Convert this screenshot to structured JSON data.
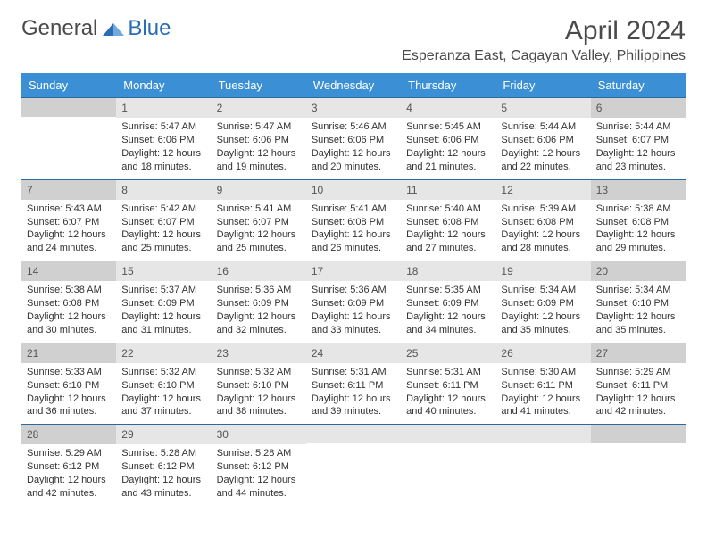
{
  "logo": {
    "general": "General",
    "blue": "Blue"
  },
  "title": "April 2024",
  "location": "Esperanza East, Cagayan Valley, Philippines",
  "accent_color": "#3b8fd4",
  "daynames": [
    "Sunday",
    "Monday",
    "Tuesday",
    "Wednesday",
    "Thursday",
    "Friday",
    "Saturday"
  ],
  "weeks": [
    [
      null,
      {
        "n": "1",
        "sr": "Sunrise: 5:47 AM",
        "ss": "Sunset: 6:06 PM",
        "dl": "Daylight: 12 hours and 18 minutes."
      },
      {
        "n": "2",
        "sr": "Sunrise: 5:47 AM",
        "ss": "Sunset: 6:06 PM",
        "dl": "Daylight: 12 hours and 19 minutes."
      },
      {
        "n": "3",
        "sr": "Sunrise: 5:46 AM",
        "ss": "Sunset: 6:06 PM",
        "dl": "Daylight: 12 hours and 20 minutes."
      },
      {
        "n": "4",
        "sr": "Sunrise: 5:45 AM",
        "ss": "Sunset: 6:06 PM",
        "dl": "Daylight: 12 hours and 21 minutes."
      },
      {
        "n": "5",
        "sr": "Sunrise: 5:44 AM",
        "ss": "Sunset: 6:06 PM",
        "dl": "Daylight: 12 hours and 22 minutes."
      },
      {
        "n": "6",
        "sr": "Sunrise: 5:44 AM",
        "ss": "Sunset: 6:07 PM",
        "dl": "Daylight: 12 hours and 23 minutes."
      }
    ],
    [
      {
        "n": "7",
        "sr": "Sunrise: 5:43 AM",
        "ss": "Sunset: 6:07 PM",
        "dl": "Daylight: 12 hours and 24 minutes."
      },
      {
        "n": "8",
        "sr": "Sunrise: 5:42 AM",
        "ss": "Sunset: 6:07 PM",
        "dl": "Daylight: 12 hours and 25 minutes."
      },
      {
        "n": "9",
        "sr": "Sunrise: 5:41 AM",
        "ss": "Sunset: 6:07 PM",
        "dl": "Daylight: 12 hours and 25 minutes."
      },
      {
        "n": "10",
        "sr": "Sunrise: 5:41 AM",
        "ss": "Sunset: 6:08 PM",
        "dl": "Daylight: 12 hours and 26 minutes."
      },
      {
        "n": "11",
        "sr": "Sunrise: 5:40 AM",
        "ss": "Sunset: 6:08 PM",
        "dl": "Daylight: 12 hours and 27 minutes."
      },
      {
        "n": "12",
        "sr": "Sunrise: 5:39 AM",
        "ss": "Sunset: 6:08 PM",
        "dl": "Daylight: 12 hours and 28 minutes."
      },
      {
        "n": "13",
        "sr": "Sunrise: 5:38 AM",
        "ss": "Sunset: 6:08 PM",
        "dl": "Daylight: 12 hours and 29 minutes."
      }
    ],
    [
      {
        "n": "14",
        "sr": "Sunrise: 5:38 AM",
        "ss": "Sunset: 6:08 PM",
        "dl": "Daylight: 12 hours and 30 minutes."
      },
      {
        "n": "15",
        "sr": "Sunrise: 5:37 AM",
        "ss": "Sunset: 6:09 PM",
        "dl": "Daylight: 12 hours and 31 minutes."
      },
      {
        "n": "16",
        "sr": "Sunrise: 5:36 AM",
        "ss": "Sunset: 6:09 PM",
        "dl": "Daylight: 12 hours and 32 minutes."
      },
      {
        "n": "17",
        "sr": "Sunrise: 5:36 AM",
        "ss": "Sunset: 6:09 PM",
        "dl": "Daylight: 12 hours and 33 minutes."
      },
      {
        "n": "18",
        "sr": "Sunrise: 5:35 AM",
        "ss": "Sunset: 6:09 PM",
        "dl": "Daylight: 12 hours and 34 minutes."
      },
      {
        "n": "19",
        "sr": "Sunrise: 5:34 AM",
        "ss": "Sunset: 6:09 PM",
        "dl": "Daylight: 12 hours and 35 minutes."
      },
      {
        "n": "20",
        "sr": "Sunrise: 5:34 AM",
        "ss": "Sunset: 6:10 PM",
        "dl": "Daylight: 12 hours and 35 minutes."
      }
    ],
    [
      {
        "n": "21",
        "sr": "Sunrise: 5:33 AM",
        "ss": "Sunset: 6:10 PM",
        "dl": "Daylight: 12 hours and 36 minutes."
      },
      {
        "n": "22",
        "sr": "Sunrise: 5:32 AM",
        "ss": "Sunset: 6:10 PM",
        "dl": "Daylight: 12 hours and 37 minutes."
      },
      {
        "n": "23",
        "sr": "Sunrise: 5:32 AM",
        "ss": "Sunset: 6:10 PM",
        "dl": "Daylight: 12 hours and 38 minutes."
      },
      {
        "n": "24",
        "sr": "Sunrise: 5:31 AM",
        "ss": "Sunset: 6:11 PM",
        "dl": "Daylight: 12 hours and 39 minutes."
      },
      {
        "n": "25",
        "sr": "Sunrise: 5:31 AM",
        "ss": "Sunset: 6:11 PM",
        "dl": "Daylight: 12 hours and 40 minutes."
      },
      {
        "n": "26",
        "sr": "Sunrise: 5:30 AM",
        "ss": "Sunset: 6:11 PM",
        "dl": "Daylight: 12 hours and 41 minutes."
      },
      {
        "n": "27",
        "sr": "Sunrise: 5:29 AM",
        "ss": "Sunset: 6:11 PM",
        "dl": "Daylight: 12 hours and 42 minutes."
      }
    ],
    [
      {
        "n": "28",
        "sr": "Sunrise: 5:29 AM",
        "ss": "Sunset: 6:12 PM",
        "dl": "Daylight: 12 hours and 42 minutes."
      },
      {
        "n": "29",
        "sr": "Sunrise: 5:28 AM",
        "ss": "Sunset: 6:12 PM",
        "dl": "Daylight: 12 hours and 43 minutes."
      },
      {
        "n": "30",
        "sr": "Sunrise: 5:28 AM",
        "ss": "Sunset: 6:12 PM",
        "dl": "Daylight: 12 hours and 44 minutes."
      },
      null,
      null,
      null,
      null
    ]
  ]
}
